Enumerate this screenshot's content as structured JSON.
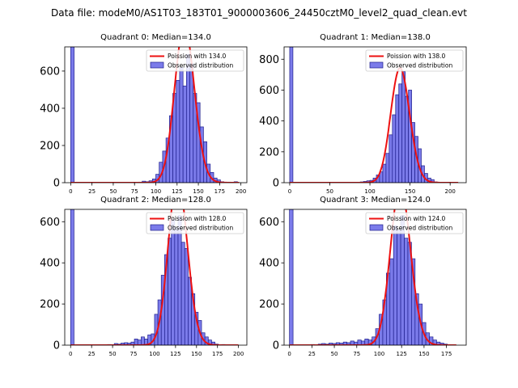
{
  "figure": {
    "suptitle": "Data file: modeM0/AS1T03_183T01_9000003606_24450cztM0_level2_quad_clean.evt"
  },
  "colors": {
    "bar_fill": "#7b7bea",
    "bar_edge": "#1e1e8c",
    "poisson_line": "#ee1111",
    "axis": "#000000"
  },
  "chart_data": [
    {
      "type": "bar",
      "title": "Quadrant 0: Median=134.0",
      "xlim": [
        -7,
        207
      ],
      "ylim": [
        0,
        730
      ],
      "xticks": [
        0,
        25,
        50,
        75,
        100,
        125,
        150,
        175,
        200
      ],
      "yticks": [
        0,
        200,
        400,
        600
      ],
      "bin_width": 4,
      "bins": [
        [
          0,
          730
        ],
        [
          80,
          3
        ],
        [
          84,
          8
        ],
        [
          88,
          5
        ],
        [
          92,
          10
        ],
        [
          96,
          20
        ],
        [
          100,
          45
        ],
        [
          104,
          110
        ],
        [
          108,
          170
        ],
        [
          112,
          240
        ],
        [
          116,
          360
        ],
        [
          120,
          480
        ],
        [
          124,
          550
        ],
        [
          128,
          620
        ],
        [
          132,
          520
        ],
        [
          136,
          690
        ],
        [
          140,
          640
        ],
        [
          144,
          480
        ],
        [
          148,
          430
        ],
        [
          152,
          300
        ],
        [
          156,
          220
        ],
        [
          160,
          100
        ],
        [
          164,
          55
        ],
        [
          168,
          25
        ],
        [
          172,
          15
        ],
        [
          176,
          5
        ],
        [
          184,
          3
        ],
        [
          192,
          5
        ]
      ],
      "poisson": {
        "mu": 134,
        "x_range": [
          0,
          198
        ]
      },
      "legend": [
        "Poission with 134.0",
        "Observed distribution"
      ]
    },
    {
      "type": "bar",
      "title": "Quadrant 1: Median=138.0",
      "xlim": [
        -7,
        220
      ],
      "ylim": [
        0,
        880
      ],
      "xticks": [
        0,
        50,
        100,
        150,
        200
      ],
      "yticks": [
        0,
        200,
        400,
        600,
        800
      ],
      "bin_width": 4,
      "bins": [
        [
          0,
          880
        ],
        [
          88,
          5
        ],
        [
          92,
          8
        ],
        [
          96,
          12
        ],
        [
          100,
          15
        ],
        [
          104,
          30
        ],
        [
          108,
          50
        ],
        [
          112,
          70
        ],
        [
          116,
          120
        ],
        [
          120,
          190
        ],
        [
          124,
          310
        ],
        [
          128,
          440
        ],
        [
          132,
          570
        ],
        [
          136,
          640
        ],
        [
          140,
          720
        ],
        [
          144,
          560
        ],
        [
          148,
          600
        ],
        [
          152,
          390
        ],
        [
          156,
          300
        ],
        [
          160,
          220
        ],
        [
          164,
          110
        ],
        [
          168,
          60
        ],
        [
          172,
          30
        ],
        [
          176,
          20
        ],
        [
          180,
          5
        ]
      ],
      "poisson": {
        "mu": 138,
        "x_range": [
          0,
          210
        ]
      },
      "legend": [
        "Poission with 138.0",
        "Observed distribution"
      ]
    },
    {
      "type": "bar",
      "title": "Quadrant 2: Median=128.0",
      "xlim": [
        -7,
        210
      ],
      "ylim": [
        0,
        660
      ],
      "xticks": [
        0,
        25,
        50,
        75,
        100,
        125,
        150,
        175,
        200
      ],
      "yticks": [
        0,
        200,
        400,
        600
      ],
      "bin_width": 4,
      "bins": [
        [
          0,
          660
        ],
        [
          44,
          3
        ],
        [
          52,
          8
        ],
        [
          56,
          5
        ],
        [
          60,
          10
        ],
        [
          64,
          12
        ],
        [
          68,
          10
        ],
        [
          72,
          15
        ],
        [
          76,
          30
        ],
        [
          80,
          25
        ],
        [
          84,
          40
        ],
        [
          88,
          30
        ],
        [
          92,
          50
        ],
        [
          96,
          55
        ],
        [
          100,
          150
        ],
        [
          104,
          220
        ],
        [
          108,
          340
        ],
        [
          112,
          440
        ],
        [
          116,
          520
        ],
        [
          120,
          610
        ],
        [
          124,
          570
        ],
        [
          128,
          630
        ],
        [
          132,
          500
        ],
        [
          136,
          470
        ],
        [
          140,
          330
        ],
        [
          144,
          250
        ],
        [
          148,
          160
        ],
        [
          152,
          120
        ],
        [
          156,
          60
        ],
        [
          160,
          40
        ],
        [
          164,
          25
        ],
        [
          168,
          15
        ],
        [
          172,
          5
        ],
        [
          180,
          3
        ]
      ],
      "poisson": {
        "mu": 128,
        "x_range": [
          0,
          200
        ]
      },
      "legend": [
        "Poission with 128.0",
        "Observed distribution"
      ]
    },
    {
      "type": "bar",
      "title": "Quadrant 3: Median=124.0",
      "xlim": [
        -6,
        197
      ],
      "ylim": [
        0,
        660
      ],
      "xticks": [
        0,
        25,
        50,
        75,
        100,
        125,
        150,
        175
      ],
      "yticks": [
        0,
        200,
        400,
        600
      ],
      "bin_width": 4,
      "bins": [
        [
          0,
          660
        ],
        [
          24,
          3
        ],
        [
          32,
          5
        ],
        [
          36,
          8
        ],
        [
          40,
          5
        ],
        [
          44,
          10
        ],
        [
          48,
          8
        ],
        [
          52,
          12
        ],
        [
          56,
          10
        ],
        [
          60,
          15
        ],
        [
          64,
          12
        ],
        [
          68,
          20
        ],
        [
          72,
          15
        ],
        [
          76,
          25
        ],
        [
          80,
          20
        ],
        [
          84,
          30
        ],
        [
          88,
          25
        ],
        [
          92,
          40
        ],
        [
          96,
          80
        ],
        [
          100,
          150
        ],
        [
          104,
          220
        ],
        [
          108,
          350
        ],
        [
          112,
          420
        ],
        [
          116,
          580
        ],
        [
          120,
          560
        ],
        [
          124,
          630
        ],
        [
          128,
          520
        ],
        [
          132,
          500
        ],
        [
          136,
          420
        ],
        [
          140,
          250
        ],
        [
          144,
          200
        ],
        [
          148,
          110
        ],
        [
          152,
          60
        ],
        [
          156,
          40
        ],
        [
          160,
          25
        ],
        [
          164,
          15
        ],
        [
          168,
          10
        ],
        [
          172,
          5
        ]
      ],
      "poisson": {
        "mu": 124,
        "x_range": [
          0,
          186
        ]
      },
      "legend": [
        "Poission with 124.0",
        "Observed distribution"
      ]
    }
  ]
}
